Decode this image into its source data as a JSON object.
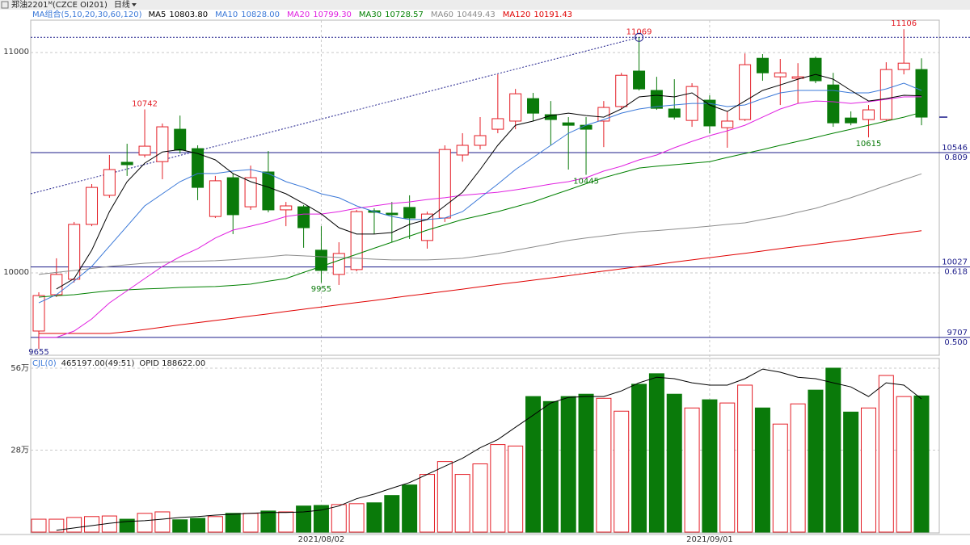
{
  "chart_data": {
    "type": "candlestick",
    "title": "郑油2201ᴹ(CZCE OI201)",
    "period": "日线",
    "indicator_label": "MA组合(5,10,20,30,60,120)",
    "categories": [
      null,
      null,
      null,
      null,
      null,
      null,
      null,
      null,
      null,
      null,
      null,
      null,
      null,
      null,
      null,
      null,
      "2021/08/02",
      null,
      null,
      null,
      null,
      null,
      null,
      null,
      null,
      null,
      null,
      null,
      null,
      null,
      null,
      null,
      null,
      null,
      null,
      null,
      null,
      null,
      "2021/09/01",
      null,
      null,
      null,
      null,
      null,
      null,
      null,
      null,
      null,
      null,
      null,
      null
    ],
    "open": [
      9736,
      9901,
      9971,
      10220,
      10352,
      10502,
      10535,
      10505,
      10652,
      10564,
      10256,
      10432,
      10300,
      10458,
      10286,
      10300,
      10103,
      9993,
      10015,
      10282,
      10271,
      10297,
      10147,
      10249,
      10535,
      10579,
      10652,
      10689,
      10791,
      10718,
      10681,
      10670,
      10689,
      10755,
      10916,
      10828,
      10744,
      10692,
      10784,
      10659,
      10696,
      10974,
      10890,
      10883,
      10974,
      10853,
      10703,
      10696,
      10696,
      10923,
      10923
    ],
    "high": [
      9912,
      10066,
      10231,
      10403,
      10535,
      10586,
      10742,
      10678,
      10714,
      10579,
      10440,
      10451,
      10487,
      10553,
      10322,
      10308,
      10212,
      10139,
      10286,
      10293,
      10322,
      10352,
      10278,
      10579,
      10634,
      10707,
      10901,
      10835,
      10817,
      10780,
      10707,
      10707,
      10780,
      10908,
      11069,
      10890,
      10879,
      10861,
      10806,
      10733,
      10996,
      10993,
      10971,
      10952,
      10982,
      10908,
      10733,
      10762,
      10956,
      11106,
      10974
    ],
    "low": [
      9655,
      9890,
      9956,
      10212,
      10341,
      10440,
      10524,
      10425,
      10542,
      10330,
      10249,
      10176,
      10286,
      10275,
      10212,
      10114,
      9955,
      9945,
      10007,
      10176,
      10139,
      10154,
      10110,
      10231,
      10505,
      10560,
      10634,
      10652,
      10689,
      10579,
      10469,
      10445,
      10571,
      10744,
      10828,
      10740,
      10696,
      10663,
      10634,
      10568,
      10689,
      10872,
      10762,
      10769,
      10861,
      10663,
      10670,
      10615,
      10689,
      10901,
      10670
    ],
    "close": [
      9897,
      9993,
      10220,
      10388,
      10469,
      10491,
      10575,
      10663,
      10557,
      10388,
      10418,
      10264,
      10432,
      10286,
      10304,
      10205,
      10011,
      10088,
      10278,
      10275,
      10264,
      10249,
      10267,
      10560,
      10579,
      10623,
      10700,
      10813,
      10725,
      10696,
      10670,
      10652,
      10751,
      10897,
      10835,
      10747,
      10707,
      10846,
      10667,
      10689,
      10945,
      10908,
      10908,
      10890,
      10872,
      10681,
      10681,
      10740,
      10923,
      10952,
      10707
    ],
    "up_color": "#e41e26",
    "down_color": "#0a7a0a",
    "ylim": [
      9626,
      11147
    ],
    "yticks": [
      11000,
      10000
    ],
    "grid": true,
    "levels": [
      {
        "value": 10546,
        "ratio": "0.809"
      },
      {
        "value": 10027,
        "ratio": "0.618"
      },
      {
        "value": 9707,
        "ratio": "0.500"
      }
    ],
    "level_color": "#1c1c8a",
    "trendline": {
      "start": 10359,
      "end": 11069
    },
    "marked_highs": [
      6,
      34,
      49
    ],
    "marked_lows": [
      0,
      16,
      31,
      47
    ],
    "series": [
      {
        "name": "MA5",
        "color": "#000000",
        "legend_value": "10803.80",
        "values": [
          null,
          9927,
          9974,
          10103,
          10278,
          10414,
          10498,
          10549,
          10560,
          10542,
          10513,
          10451,
          10414,
          10389,
          10359,
          10315,
          10268,
          10205,
          10176,
          10176,
          10183,
          10220,
          10242,
          10304,
          10366,
          10469,
          10579,
          10670,
          10689,
          10714,
          10725,
          10714,
          10707,
          10744,
          10799,
          10806,
          10799,
          10817,
          10762,
          10733,
          10780,
          10828,
          10853,
          10879,
          10901,
          10879,
          10828,
          10780,
          10791,
          10806,
          10803.8
        ]
      },
      {
        "name": "MA10",
        "color": "#3a78d8",
        "legend_value": "10828.00",
        "values": [
          9864,
          9901,
          9963,
          10029,
          10121,
          10212,
          10304,
          10359,
          10414,
          10451,
          10451,
          10462,
          10469,
          10451,
          10414,
          10389,
          10359,
          10341,
          10304,
          10278,
          10256,
          10242,
          10242,
          10249,
          10278,
          10341,
          10403,
          10469,
          10524,
          10579,
          10634,
          10670,
          10696,
          10725,
          10744,
          10755,
          10762,
          10769,
          10769,
          10755,
          10762,
          10791,
          10817,
          10828,
          10828,
          10828,
          10817,
          10817,
          10835,
          10861,
          10828
        ]
      },
      {
        "name": "MA20",
        "color": "#e020e0",
        "legend_value": "10799.30",
        "values": [
          9707,
          9707,
          9736,
          9791,
          9864,
          9919,
          9974,
          10029,
          10073,
          10110,
          10158,
          10194,
          10212,
          10231,
          10256,
          10267,
          10267,
          10278,
          10293,
          10304,
          10315,
          10322,
          10333,
          10341,
          10352,
          10359,
          10366,
          10377,
          10389,
          10403,
          10414,
          10432,
          10462,
          10484,
          10513,
          10535,
          10568,
          10597,
          10623,
          10645,
          10670,
          10707,
          10744,
          10769,
          10780,
          10777,
          10769,
          10777,
          10788,
          10799,
          10799.3
        ]
      },
      {
        "name": "MA30",
        "color": "#008000",
        "legend_value": "10728.57",
        "values": [
          9890,
          9896,
          9901,
          9910,
          9919,
          9923,
          9927,
          9930,
          9934,
          9936,
          9938,
          9943,
          9949,
          9962,
          9974,
          10002,
          10029,
          10057,
          10084,
          10112,
          10139,
          10167,
          10194,
          10218,
          10242,
          10260,
          10278,
          10300,
          10322,
          10350,
          10377,
          10405,
          10432,
          10454,
          10476,
          10484,
          10491,
          10498,
          10505,
          10524,
          10542,
          10560,
          10579,
          10597,
          10615,
          10634,
          10652,
          10670,
          10689,
          10707,
          10728.57
        ]
      },
      {
        "name": "MA60",
        "color": "#8c8c8c",
        "legend_value": "10449.43",
        "values": [
          9993,
          10002,
          10011,
          10020,
          10029,
          10037,
          10044,
          10048,
          10051,
          10053,
          10055,
          10060,
          10066,
          10073,
          10081,
          10077,
          10073,
          10070,
          10066,
          10062,
          10059,
          10059,
          10059,
          10062,
          10066,
          10077,
          10088,
          10103,
          10117,
          10132,
          10147,
          10158,
          10168,
          10178,
          10187,
          10192,
          10198,
          10205,
          10212,
          10220,
          10227,
          10242,
          10256,
          10275,
          10293,
          10317,
          10341,
          10368,
          10396,
          10423,
          10449.43
        ]
      },
      {
        "name": "MA120",
        "color": "#e00000",
        "legend_value": "10191.43",
        "values": [
          9725,
          9725,
          9725,
          9725,
          9725,
          9733,
          9743,
          9753,
          9764,
          9774,
          9784,
          9794,
          9804,
          9814,
          9825,
          9835,
          9845,
          9855,
          9865,
          9875,
          9886,
          9896,
          9906,
          9916,
          9926,
          9937,
          9947,
          9957,
          9967,
          9977,
          9987,
          9998,
          10008,
          10018,
          10028,
          10038,
          10049,
          10059,
          10069,
          10079,
          10089,
          10099,
          10110,
          10120,
          10130,
          10140,
          10150,
          10160,
          10171,
          10181,
          10191.43
        ]
      }
    ],
    "volume": {
      "name": "CJL(0)",
      "info": "465197.00(49:51)",
      "opid": "OPID 188622.00",
      "values": [
        4.4,
        4.4,
        5.0,
        5.3,
        5.5,
        4.4,
        6.4,
        6.9,
        4.2,
        4.7,
        5.3,
        6.4,
        6.4,
        7.2,
        6.9,
        8.9,
        9.1,
        9.4,
        9.7,
        10.0,
        12.5,
        16.1,
        19.7,
        24.1,
        19.7,
        23.3,
        29.9,
        29.4,
        46.3,
        44.6,
        46.3,
        47.1,
        45.7,
        41.3,
        50.5,
        54.1,
        47.1,
        42.4,
        45.2,
        44.1,
        50.2,
        42.4,
        36.9,
        43.8,
        48.5,
        56.0,
        41.0,
        42.4,
        53.5,
        46.3,
        46.52
      ],
      "ma": [
        null,
        0.6,
        1.4,
        2.2,
        3.0,
        3.6,
        3.9,
        4.4,
        5.0,
        5.3,
        5.8,
        6.1,
        6.4,
        6.7,
        6.7,
        6.9,
        7.5,
        8.9,
        11.4,
        13.0,
        15.0,
        16.9,
        19.7,
        22.5,
        25.2,
        28.8,
        31.6,
        35.8,
        39.9,
        44.1,
        46.0,
        46.3,
        46.3,
        48.2,
        51.0,
        52.9,
        52.4,
        51.0,
        50.2,
        50.2,
        52.4,
        55.7,
        54.6,
        52.9,
        52.4,
        51.0,
        49.6,
        46.3,
        51.0,
        50.2,
        45.5
      ],
      "ma_color": "#000000",
      "ylim": [
        0,
        59.3
      ],
      "yticks": [
        {
          "value": 28,
          "label": "28万"
        },
        {
          "value": 56,
          "label": "56万"
        }
      ]
    }
  }
}
